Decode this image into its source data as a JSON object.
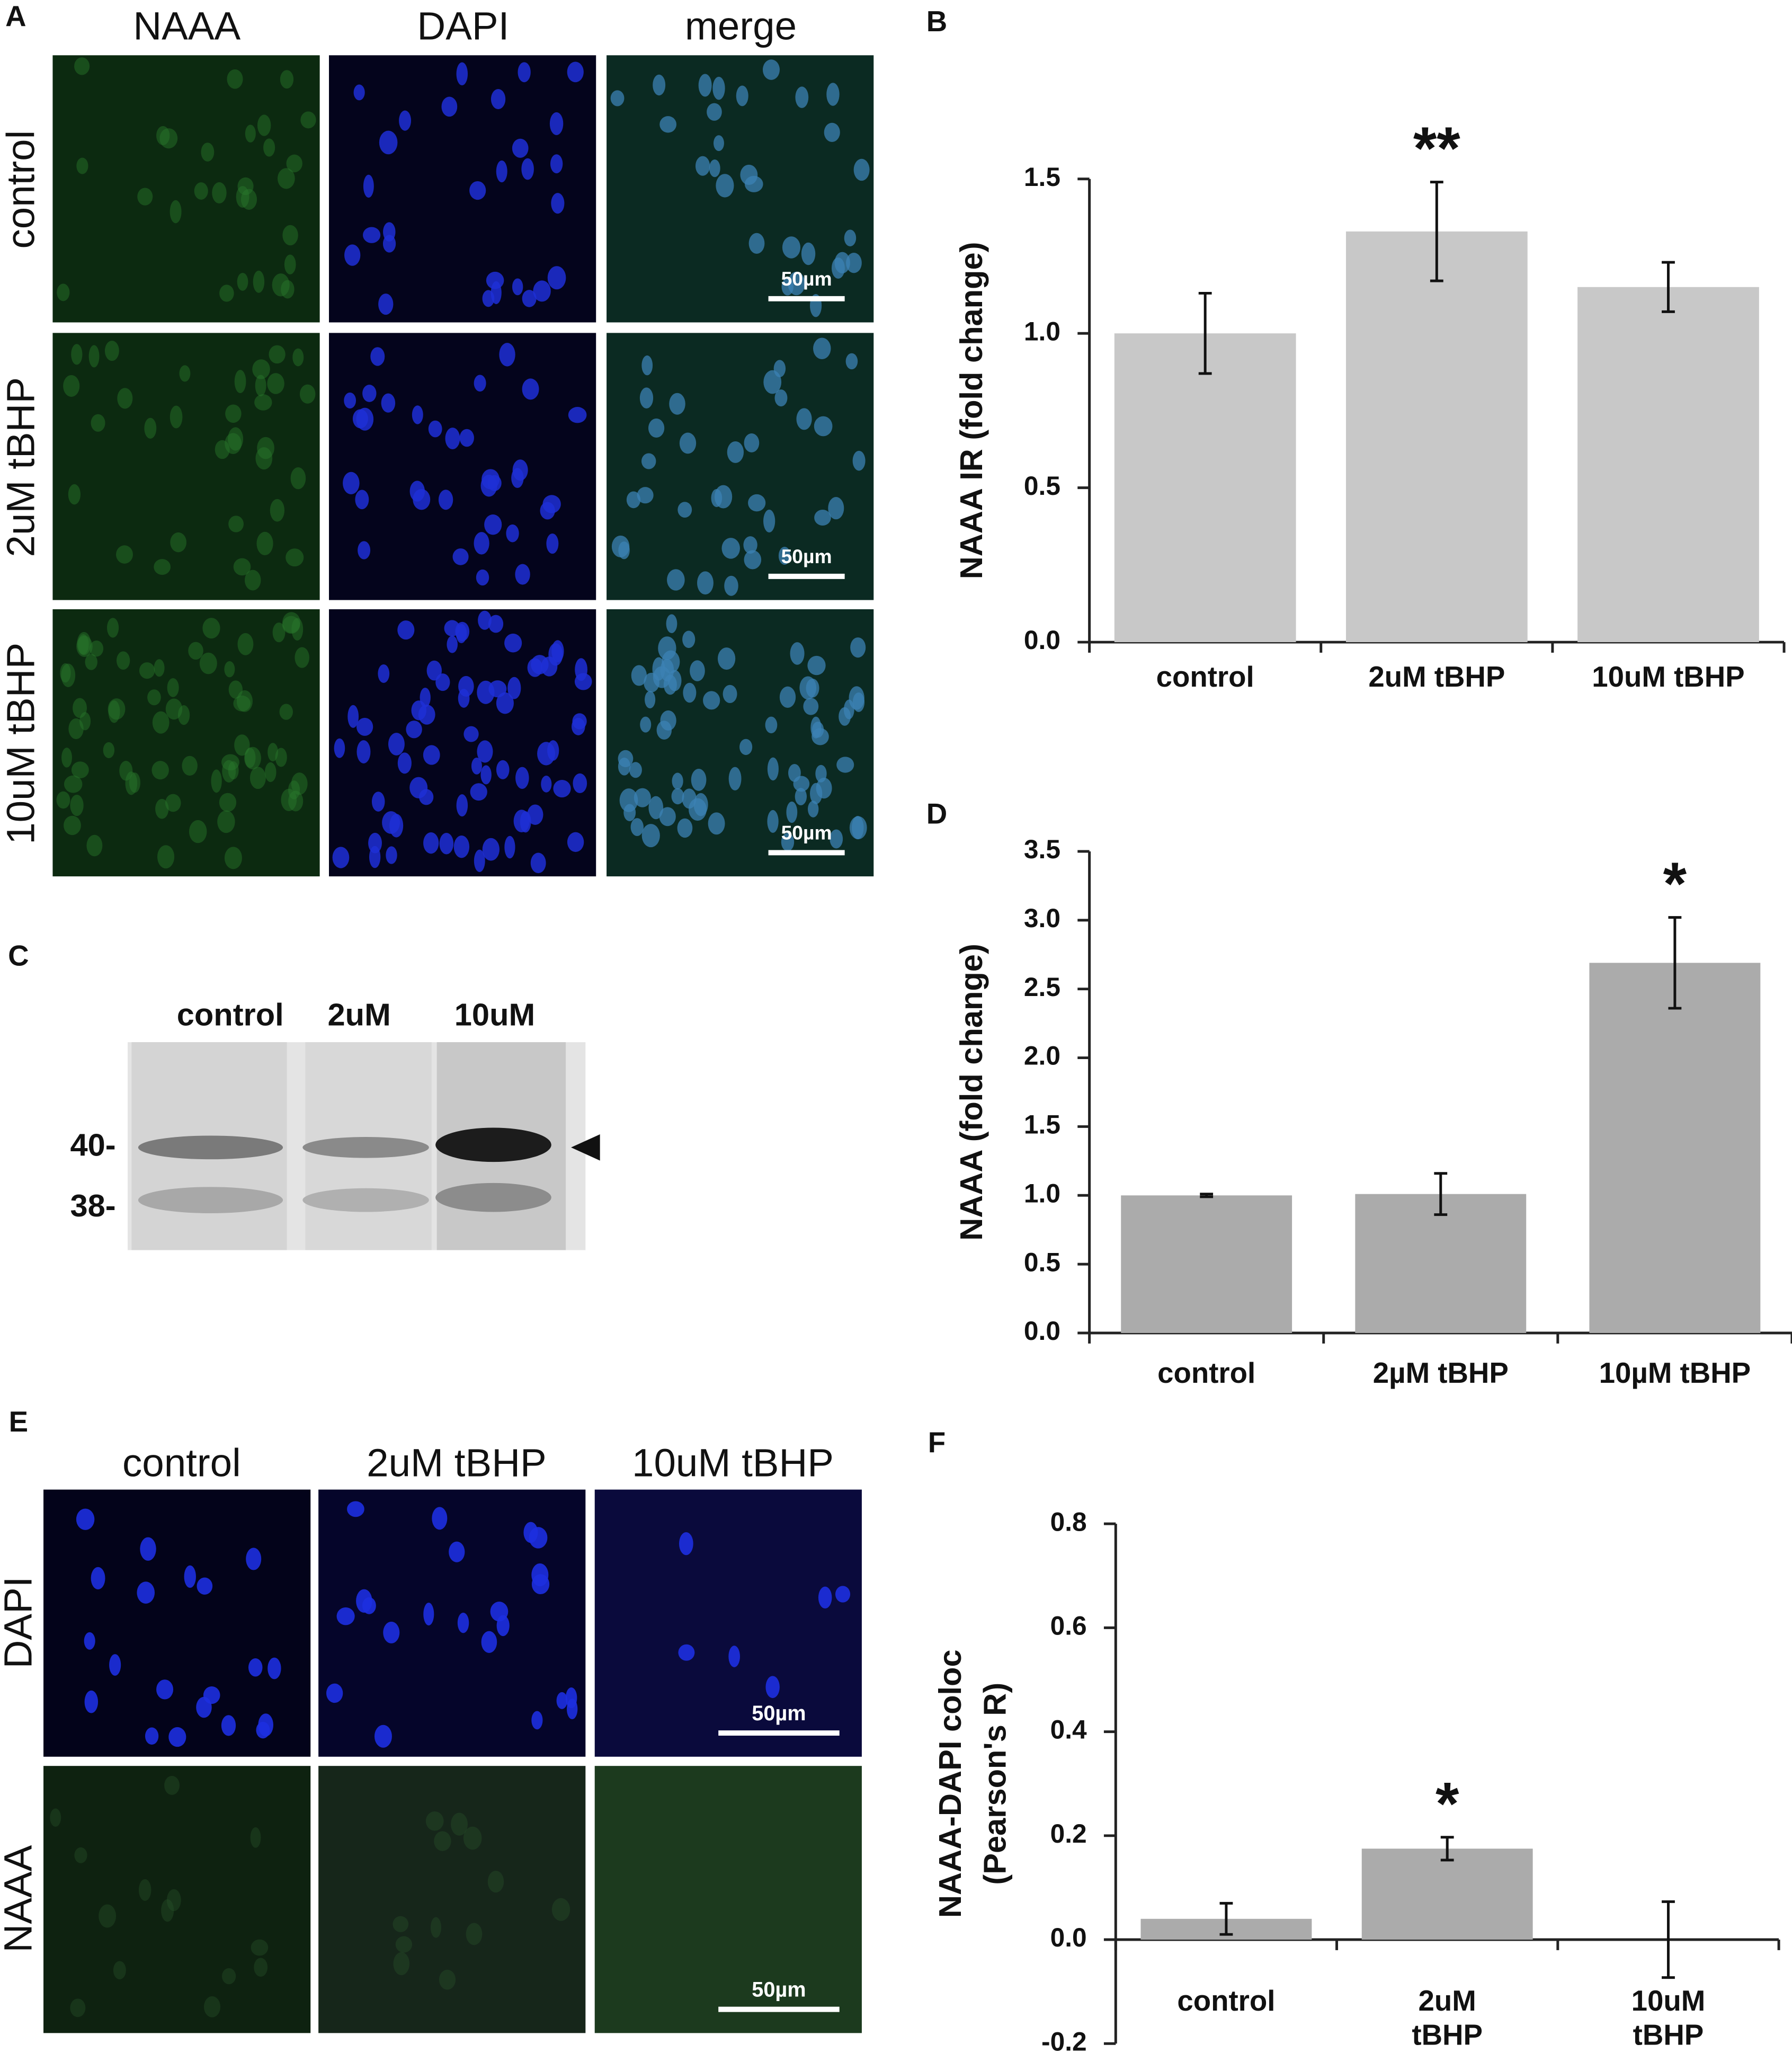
{
  "figure": {
    "panel_a": {
      "label": "A",
      "columns": [
        "NAAA",
        "DAPI",
        "merge"
      ],
      "rows": [
        "control",
        "2uM tBHP",
        "10uM tBHP"
      ],
      "scale_bar": "50µm"
    },
    "panel_c": {
      "label": "C",
      "lanes": [
        "control",
        "2uM",
        "10uM"
      ],
      "markers": [
        "40-",
        "38-"
      ]
    },
    "panel_e": {
      "label": "E",
      "columns": [
        "control",
        "2uM tBHP",
        "10uM tBHP"
      ],
      "rows": [
        "DAPI",
        "NAAA"
      ],
      "scale_bar": "50µm"
    }
  },
  "chart_data": [
    {
      "panel": "B",
      "type": "bar",
      "ylabel": "NAAA IR (fold change)",
      "categories": [
        "control",
        "2uM tBHP",
        "10uM tBHP"
      ],
      "values": [
        1.0,
        1.33,
        1.15
      ],
      "errors": [
        0.13,
        0.16,
        0.08
      ],
      "color": "#c8c8c8",
      "ylim": [
        0,
        1.5
      ],
      "yticks": [
        {
          "value": 0,
          "label": "0.0"
        },
        0.5,
        {
          "value": 1,
          "label": "1.0"
        },
        1.5
      ],
      "annotations": [
        {
          "category": "2uM tBHP",
          "text": "**"
        }
      ]
    },
    {
      "panel": "D",
      "type": "bar",
      "ylabel": "NAAA  (fold change)",
      "categories": [
        "control",
        "2µM tBHP",
        "10µM tBHP"
      ],
      "values": [
        1.0,
        1.01,
        2.69
      ],
      "errors": [
        0.01,
        0.15,
        0.33
      ],
      "color": "#ababab",
      "ylim": [
        0,
        3.5
      ],
      "yticks": [
        {
          "value": 0,
          "label": "0.0"
        },
        0.5,
        {
          "value": 1,
          "label": "1.0"
        },
        1.5,
        {
          "value": 2,
          "label": "2.0"
        },
        2.5,
        {
          "value": 3,
          "label": "3.0"
        },
        3.5
      ],
      "annotations": [
        {
          "category": "10µM tBHP",
          "text": "*"
        }
      ]
    },
    {
      "panel": "F",
      "type": "bar",
      "ylabel": [
        "NAAA-DAPI coloc",
        "(Pearson's R)"
      ],
      "categories": [
        "control",
        "2uM tBHP",
        "10uM tBHP"
      ],
      "values": [
        0.04,
        0.175,
        0
      ],
      "errors": [
        0.03,
        0.022,
        0.073
      ],
      "color": "#ababab",
      "ylim": [
        -0.2,
        0.8
      ],
      "yticks": [
        -0.2,
        {
          "value": 0,
          "label": "0.0"
        },
        0.2,
        0.4,
        0.6,
        0.8
      ],
      "annotations": [
        {
          "category": "2uM tBHP",
          "text": "*"
        }
      ]
    }
  ]
}
